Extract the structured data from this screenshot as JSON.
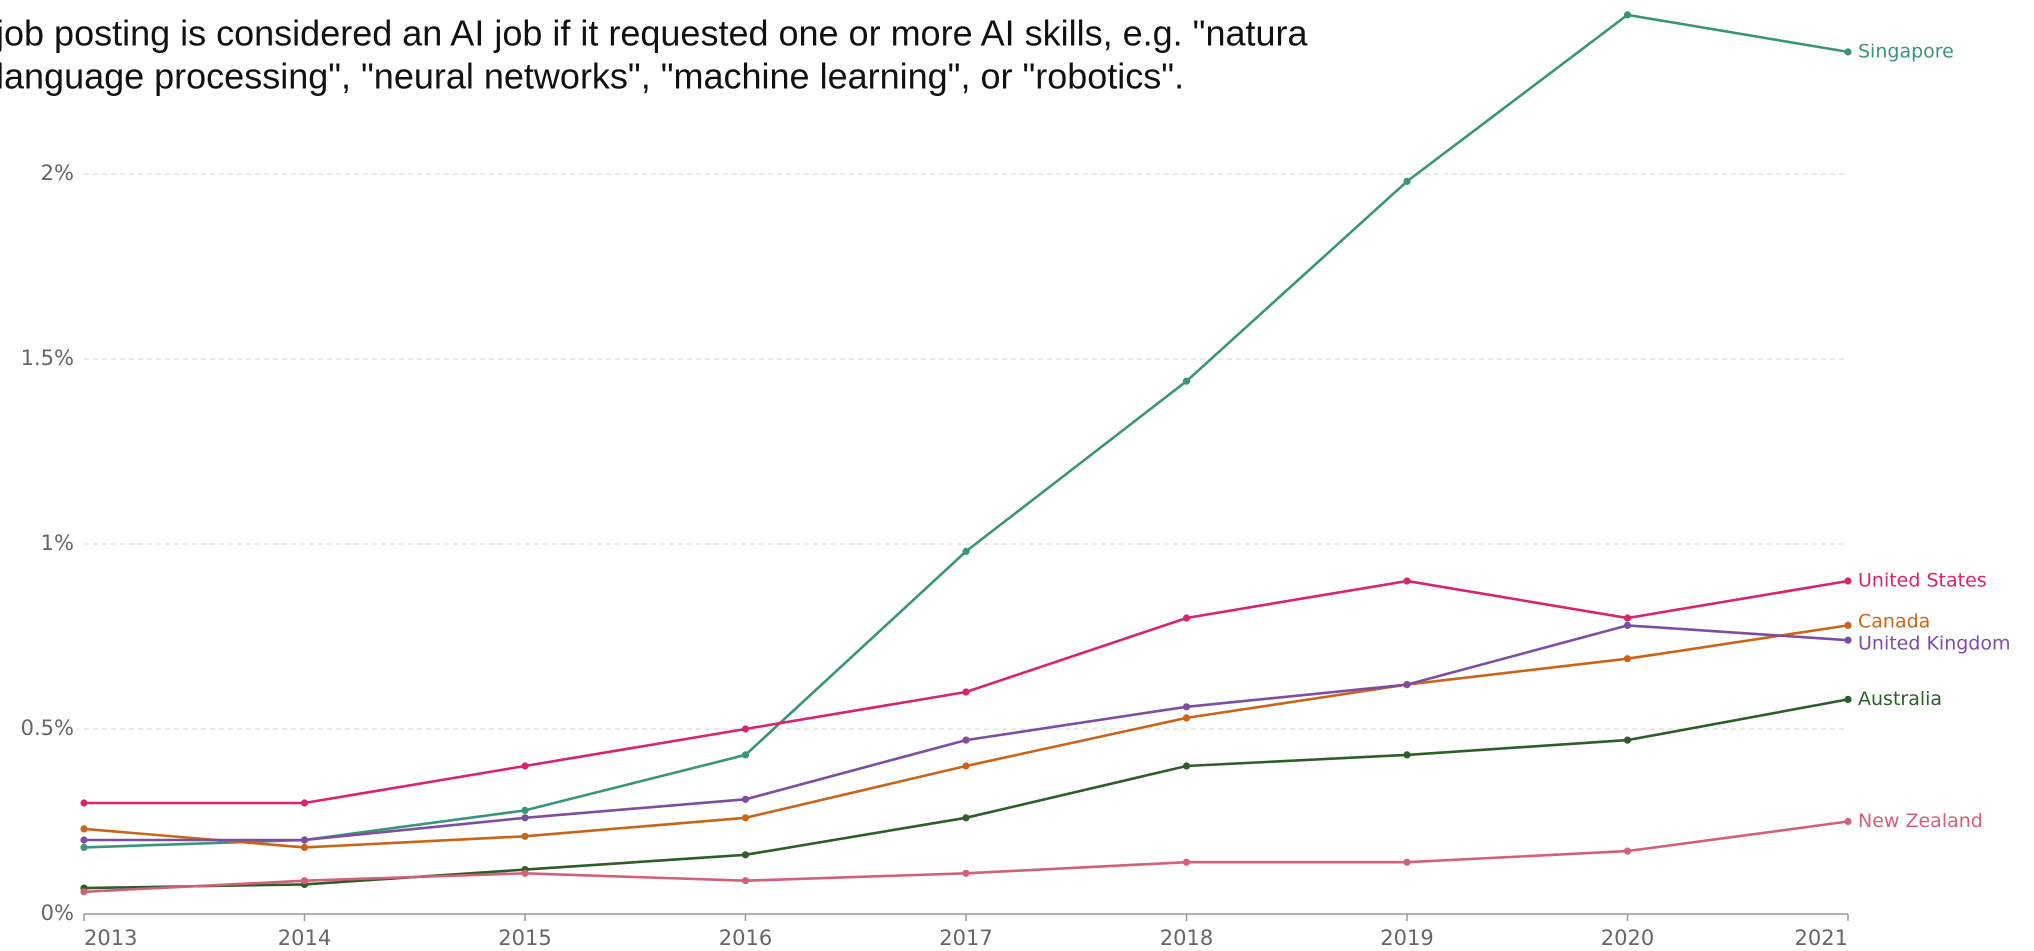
{
  "chart_data": {
    "type": "line",
    "subtitle": [
      "job posting is considered an AI job if it requested one or more AI skills, e.g. \"natura",
      "language processing\", \"neural networks\", \"machine learning\", or \"robotics\"."
    ],
    "x": [
      2013,
      2014,
      2015,
      2016,
      2017,
      2018,
      2019,
      2020,
      2021
    ],
    "xlim": [
      2013,
      2021
    ],
    "xticks": [
      2013,
      2014,
      2015,
      2016,
      2017,
      2018,
      2019,
      2020,
      2021
    ],
    "ylim": [
      0,
      2.45
    ],
    "yticks": [
      {
        "value": 0,
        "label": "0%"
      },
      {
        "value": 0.5,
        "label": "0.5%"
      },
      {
        "value": 1,
        "label": "1%"
      },
      {
        "value": 1.5,
        "label": "1.5%"
      },
      {
        "value": 2,
        "label": "2%"
      }
    ],
    "grid": true,
    "series": [
      {
        "name": "Singapore",
        "color": "#3a9478",
        "values": [
          0.18,
          0.2,
          0.28,
          0.43,
          0.98,
          1.44,
          1.98,
          2.43,
          2.33
        ]
      },
      {
        "name": "United States",
        "color": "#d6246e",
        "values": [
          0.3,
          0.3,
          0.4,
          0.5,
          0.6,
          0.8,
          0.9,
          0.8,
          0.9
        ]
      },
      {
        "name": "Canada",
        "color": "#c8651b",
        "values": [
          0.23,
          0.18,
          0.21,
          0.26,
          0.4,
          0.53,
          0.62,
          0.69,
          0.78
        ]
      },
      {
        "name": "United Kingdom",
        "color": "#7d4ea0",
        "values": [
          0.2,
          0.2,
          0.26,
          0.31,
          0.47,
          0.56,
          0.62,
          0.78,
          0.74
        ]
      },
      {
        "name": "Australia",
        "color": "#2e5d2a",
        "values": [
          0.07,
          0.08,
          0.12,
          0.16,
          0.26,
          0.4,
          0.43,
          0.47,
          0.58
        ]
      },
      {
        "name": "New Zealand",
        "color": "#d1607a",
        "values": [
          0.06,
          0.09,
          0.11,
          0.09,
          0.11,
          0.14,
          0.14,
          0.17,
          0.25
        ]
      }
    ]
  }
}
